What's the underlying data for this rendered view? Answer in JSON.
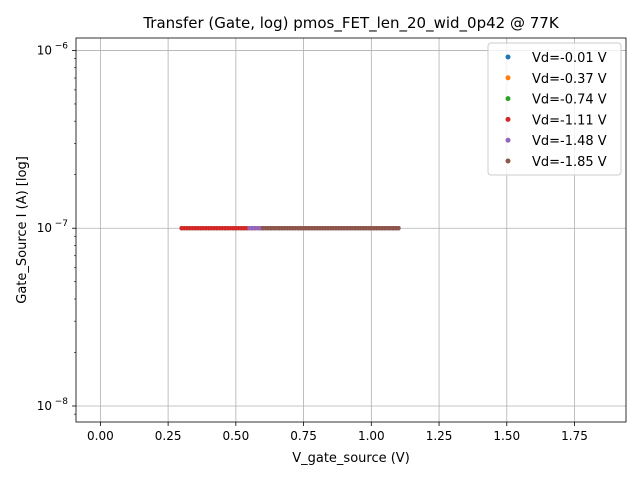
{
  "chart_data": {
    "type": "scatter",
    "title": "Transfer (Gate, log) pmos_FET_len_20_wid_0p42 @ 77K",
    "xlabel": "V_gate_source (V)",
    "ylabel": "Gate_Source I (A) [log]",
    "yscale": "log",
    "xlim": [
      -0.09,
      1.94
    ],
    "ylim_log10": [
      -8.09,
      -5.93
    ],
    "x_ticks": [
      0.0,
      0.25,
      0.5,
      0.75,
      1.0,
      1.25,
      1.5,
      1.75
    ],
    "x_tick_labels": [
      "0.00",
      "0.25",
      "0.50",
      "0.75",
      "1.00",
      "1.25",
      "1.50",
      "1.75"
    ],
    "y_ticks_log10": [
      -8,
      -7,
      -6
    ],
    "y_tick_base": "10",
    "y_tick_exponents": [
      "−8",
      "−7",
      "−6"
    ],
    "grid": true,
    "legend_position": "top-right",
    "series": [
      {
        "name": "Vd=-0.01 V",
        "color": "#1f77b4",
        "x_start": 0.3,
        "x_end": 1.1,
        "step": 0.01,
        "y": 1e-07
      },
      {
        "name": "Vd=-0.37 V",
        "color": "#ff7f0e",
        "x_start": 0.3,
        "x_end": 1.1,
        "step": 0.01,
        "y": 1e-07
      },
      {
        "name": "Vd=-0.74 V",
        "color": "#2ca02c",
        "x_start": 0.3,
        "x_end": 1.1,
        "step": 0.01,
        "y": 1e-07
      },
      {
        "name": "Vd=-1.11 V",
        "color": "#d62728",
        "x_start": 0.3,
        "x_end": 1.1,
        "step": 0.01,
        "y": 1e-07
      },
      {
        "name": "Vd=-1.48 V",
        "color": "#9467bd",
        "x_start": 0.55,
        "x_end": 1.1,
        "step": 0.01,
        "y": 1e-07
      },
      {
        "name": "Vd=-1.85 V",
        "color": "#8c564b",
        "x_start": 0.6,
        "x_end": 1.1,
        "step": 0.01,
        "y": 1e-07
      }
    ]
  }
}
